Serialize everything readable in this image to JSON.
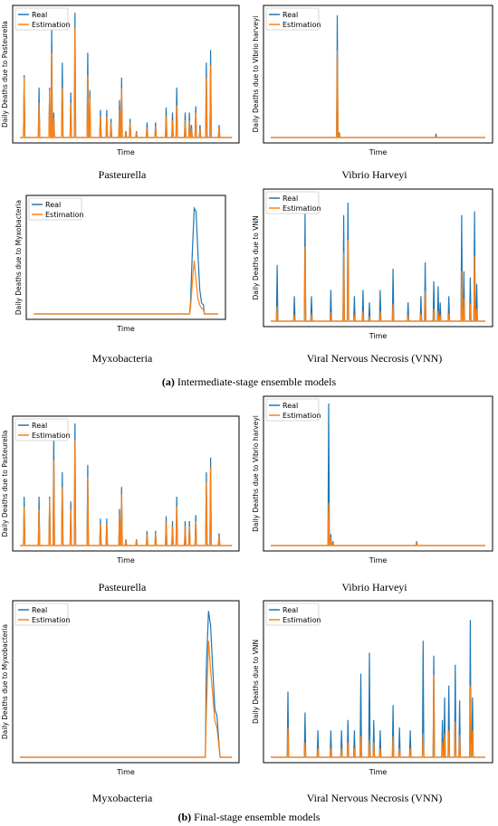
{
  "colors": {
    "real": "#1f77b4",
    "estimation": "#ff7f0e"
  },
  "section_captions": [
    {
      "letter": "(a)",
      "text": " Intermediate-stage ensemble models"
    },
    {
      "letter": "(b)",
      "text": " Final-stage ensemble models"
    }
  ],
  "chart_data": [
    {
      "type": "line",
      "caption": "Pasteurella",
      "xlabel": "Time",
      "ylabel": "Daily Deaths due to Pasteurella",
      "legend": [
        "Real",
        "Estimation"
      ],
      "legend_position": "top-left",
      "xlim": [
        0,
        100
      ],
      "ylim": [
        0,
        100
      ],
      "real": [
        [
          2,
          50
        ],
        [
          9,
          40
        ],
        [
          14,
          40
        ],
        [
          15,
          88
        ],
        [
          16,
          20
        ],
        [
          20,
          60
        ],
        [
          24,
          36
        ],
        [
          26,
          100
        ],
        [
          32,
          68
        ],
        [
          33,
          38
        ],
        [
          38,
          22
        ],
        [
          41,
          22
        ],
        [
          43,
          15
        ],
        [
          47,
          30
        ],
        [
          48,
          48
        ],
        [
          50,
          5
        ],
        [
          52,
          15
        ],
        [
          55,
          5
        ],
        [
          60,
          12
        ],
        [
          64,
          12
        ],
        [
          69,
          24
        ],
        [
          72,
          20
        ],
        [
          74,
          40
        ],
        [
          78,
          20
        ],
        [
          80,
          20
        ],
        [
          81,
          10
        ],
        [
          83,
          25
        ],
        [
          85,
          10
        ],
        [
          88,
          60
        ],
        [
          90,
          70
        ],
        [
          94,
          10
        ]
      ],
      "estimation": [
        [
          2,
          48
        ],
        [
          9,
          28
        ],
        [
          14,
          38
        ],
        [
          15,
          68
        ],
        [
          16,
          16
        ],
        [
          20,
          40
        ],
        [
          24,
          28
        ],
        [
          26,
          88
        ],
        [
          32,
          50
        ],
        [
          33,
          32
        ],
        [
          38,
          17
        ],
        [
          41,
          17
        ],
        [
          43,
          12
        ],
        [
          47,
          22
        ],
        [
          48,
          40
        ],
        [
          50,
          4
        ],
        [
          52,
          12
        ],
        [
          55,
          4
        ],
        [
          60,
          8
        ],
        [
          64,
          9
        ],
        [
          69,
          17
        ],
        [
          72,
          14
        ],
        [
          74,
          26
        ],
        [
          78,
          14
        ],
        [
          80,
          14
        ],
        [
          81,
          7
        ],
        [
          83,
          20
        ],
        [
          85,
          7
        ],
        [
          88,
          48
        ],
        [
          90,
          58
        ],
        [
          94,
          8
        ]
      ]
    },
    {
      "type": "line",
      "caption": "Vibrio Harveyi",
      "xlabel": "Time",
      "ylabel": "Daily Deaths due to Vibrio harveyi",
      "legend": [
        "Real",
        "Estimation"
      ],
      "legend_position": "top-left",
      "xlim": [
        0,
        100
      ],
      "ylim": [
        0,
        100
      ],
      "real": [
        [
          31,
          98
        ],
        [
          32,
          4
        ],
        [
          77,
          3
        ]
      ],
      "estimation": [
        [
          31,
          70
        ],
        [
          32,
          3
        ],
        [
          77,
          1
        ]
      ]
    },
    {
      "type": "line",
      "caption": "Myxobacteria",
      "xlabel": "Time",
      "ylabel": "Daily Deaths due to Myxobacteria",
      "legend": [
        "Real",
        "Estimation"
      ],
      "legend_position": "top-left",
      "xlim": [
        0,
        100
      ],
      "ylim": [
        0,
        100
      ],
      "real": [
        [
          85,
          10
        ],
        [
          86,
          55
        ],
        [
          87,
          95
        ],
        [
          88,
          92
        ],
        [
          89,
          55
        ],
        [
          90,
          22
        ],
        [
          91,
          10
        ],
        [
          92,
          8
        ]
      ],
      "estimation": [
        [
          85,
          5
        ],
        [
          86,
          28
        ],
        [
          87,
          48
        ],
        [
          88,
          30
        ],
        [
          89,
          14
        ],
        [
          90,
          8
        ],
        [
          91,
          5
        ],
        [
          92,
          4
        ]
      ]
    },
    {
      "type": "line",
      "caption": "Viral Nervous Necrosis (VNN)",
      "xlabel": "Time",
      "ylabel": "Daily Deaths due to VNN",
      "legend": [
        "Real",
        "Estimation"
      ],
      "legend_position": "top-left",
      "xlim": [
        0,
        100
      ],
      "ylim": [
        0,
        100
      ],
      "real": [
        [
          3,
          45
        ],
        [
          11,
          20
        ],
        [
          16,
          86
        ],
        [
          19,
          20
        ],
        [
          28,
          25
        ],
        [
          34,
          85
        ],
        [
          36,
          95
        ],
        [
          39,
          20
        ],
        [
          43,
          25
        ],
        [
          46,
          15
        ],
        [
          51,
          25
        ],
        [
          57,
          42
        ],
        [
          64,
          15
        ],
        [
          70,
          20
        ],
        [
          72,
          47
        ],
        [
          76,
          32
        ],
        [
          78,
          28
        ],
        [
          79,
          15
        ],
        [
          83,
          20
        ],
        [
          89,
          85
        ],
        [
          90,
          40
        ],
        [
          93,
          35
        ],
        [
          95,
          88
        ],
        [
          96,
          30
        ]
      ],
      "estimation": [
        [
          3,
          12
        ],
        [
          11,
          5
        ],
        [
          16,
          60
        ],
        [
          19,
          6
        ],
        [
          28,
          7
        ],
        [
          34,
          55
        ],
        [
          36,
          65
        ],
        [
          39,
          5
        ],
        [
          43,
          8
        ],
        [
          46,
          4
        ],
        [
          51,
          8
        ],
        [
          57,
          14
        ],
        [
          64,
          5
        ],
        [
          70,
          6
        ],
        [
          72,
          24
        ],
        [
          76,
          10
        ],
        [
          78,
          8
        ],
        [
          79,
          5
        ],
        [
          83,
          6
        ],
        [
          89,
          40
        ],
        [
          90,
          18
        ],
        [
          93,
          14
        ],
        [
          95,
          52
        ],
        [
          96,
          10
        ]
      ]
    },
    {
      "type": "line",
      "caption": "Pasteurella",
      "xlabel": "Time",
      "ylabel": "Daily Deaths due to Pasteurella",
      "legend": [
        "Real",
        "Estimation"
      ],
      "legend_position": "top-left",
      "xlim": [
        0,
        100
      ],
      "ylim": [
        0,
        100
      ],
      "real": [
        [
          2,
          40
        ],
        [
          9,
          40
        ],
        [
          14,
          40
        ],
        [
          16,
          90
        ],
        [
          20,
          60
        ],
        [
          24,
          36
        ],
        [
          26,
          100
        ],
        [
          32,
          66
        ],
        [
          38,
          22
        ],
        [
          41,
          22
        ],
        [
          47,
          30
        ],
        [
          48,
          48
        ],
        [
          50,
          5
        ],
        [
          55,
          5
        ],
        [
          60,
          12
        ],
        [
          64,
          12
        ],
        [
          69,
          24
        ],
        [
          72,
          20
        ],
        [
          74,
          40
        ],
        [
          78,
          20
        ],
        [
          80,
          20
        ],
        [
          83,
          25
        ],
        [
          88,
          60
        ],
        [
          90,
          72
        ],
        [
          94,
          10
        ]
      ],
      "estimation": [
        [
          2,
          32
        ],
        [
          9,
          30
        ],
        [
          14,
          38
        ],
        [
          16,
          70
        ],
        [
          20,
          48
        ],
        [
          24,
          30
        ],
        [
          26,
          86
        ],
        [
          32,
          56
        ],
        [
          38,
          18
        ],
        [
          41,
          18
        ],
        [
          47,
          25
        ],
        [
          48,
          42
        ],
        [
          50,
          4
        ],
        [
          55,
          4
        ],
        [
          60,
          9
        ],
        [
          64,
          10
        ],
        [
          69,
          20
        ],
        [
          72,
          16
        ],
        [
          74,
          32
        ],
        [
          78,
          16
        ],
        [
          80,
          16
        ],
        [
          83,
          20
        ],
        [
          88,
          52
        ],
        [
          90,
          64
        ],
        [
          94,
          8
        ]
      ]
    },
    {
      "type": "line",
      "caption": "Vibrio Harveyi",
      "xlabel": "Time",
      "ylabel": "Daily Deaths due to Vibrio harveyi",
      "legend": [
        "Real",
        "Estimation"
      ],
      "legend_position": "top-left",
      "xlim": [
        0,
        100
      ],
      "ylim": [
        0,
        100
      ],
      "real": [
        [
          27,
          100
        ],
        [
          28,
          8
        ],
        [
          29,
          3
        ],
        [
          68,
          3
        ]
      ],
      "estimation": [
        [
          27,
          30
        ],
        [
          28,
          6
        ],
        [
          29,
          2
        ],
        [
          68,
          2
        ]
      ]
    },
    {
      "type": "line",
      "caption": "Myxobacteria",
      "xlabel": "Time",
      "ylabel": "Daily Deaths due to Myxobacteria",
      "legend": [
        "Real",
        "Estimation"
      ],
      "legend_position": "top-left",
      "xlim": [
        0,
        100
      ],
      "ylim": [
        0,
        100
      ],
      "real": [
        [
          88,
          60
        ],
        [
          89,
          98
        ],
        [
          90,
          88
        ],
        [
          91,
          60
        ],
        [
          92,
          32
        ],
        [
          93,
          28
        ],
        [
          94,
          8
        ]
      ],
      "estimation": [
        [
          88,
          30
        ],
        [
          89,
          78
        ],
        [
          90,
          58
        ],
        [
          91,
          42
        ],
        [
          92,
          24
        ],
        [
          93,
          20
        ],
        [
          94,
          6
        ]
      ]
    },
    {
      "type": "line",
      "caption": "Viral Nervous Necrosis (VNN)",
      "xlabel": "Time",
      "ylabel": "Daily Deaths due to VNN",
      "legend": [
        "Real",
        "Estimation"
      ],
      "legend_position": "top-left",
      "xlim": [
        0,
        100
      ],
      "ylim": [
        0,
        100
      ],
      "real": [
        [
          8,
          44
        ],
        [
          16,
          30
        ],
        [
          22,
          18
        ],
        [
          28,
          18
        ],
        [
          33,
          18
        ],
        [
          36,
          25
        ],
        [
          39,
          18
        ],
        [
          42,
          56
        ],
        [
          46,
          70
        ],
        [
          48,
          25
        ],
        [
          51,
          18
        ],
        [
          57,
          35
        ],
        [
          60,
          20
        ],
        [
          65,
          18
        ],
        [
          71,
          78
        ],
        [
          76,
          68
        ],
        [
          80,
          25
        ],
        [
          81,
          40
        ],
        [
          83,
          48
        ],
        [
          86,
          62
        ],
        [
          88,
          38
        ],
        [
          93,
          92
        ],
        [
          94,
          40
        ]
      ],
      "estimation": [
        [
          8,
          20
        ],
        [
          16,
          10
        ],
        [
          22,
          6
        ],
        [
          28,
          6
        ],
        [
          33,
          6
        ],
        [
          36,
          10
        ],
        [
          39,
          6
        ],
        [
          42,
          14
        ],
        [
          46,
          12
        ],
        [
          48,
          10
        ],
        [
          51,
          6
        ],
        [
          57,
          14
        ],
        [
          60,
          6
        ],
        [
          65,
          6
        ],
        [
          71,
          16
        ],
        [
          76,
          55
        ],
        [
          80,
          10
        ],
        [
          81,
          16
        ],
        [
          83,
          18
        ],
        [
          86,
          24
        ],
        [
          88,
          15
        ],
        [
          93,
          48
        ],
        [
          94,
          18
        ]
      ]
    }
  ]
}
